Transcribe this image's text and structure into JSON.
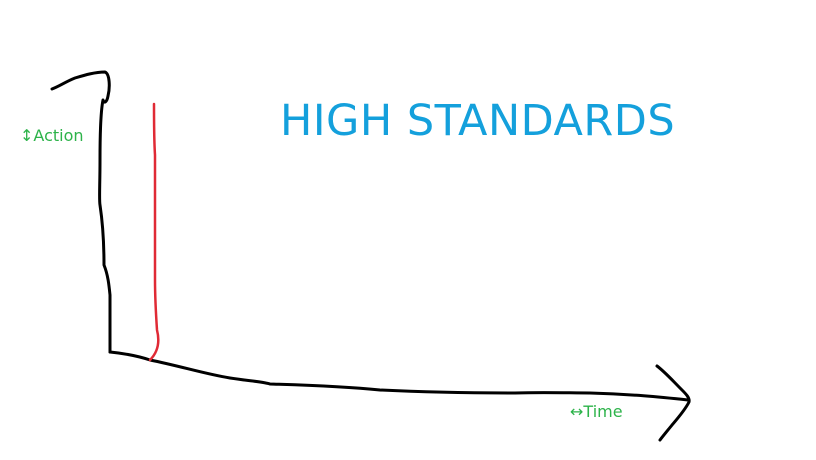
{
  "title": "HIGH STANDARDS",
  "y_axis_label": "↕Action",
  "x_axis_label": "↔Time",
  "colors": {
    "axes_stroke": "#000000",
    "standard_line": "#e02a35",
    "title": "#14a0dc",
    "axis_labels": "#2db34a"
  }
}
